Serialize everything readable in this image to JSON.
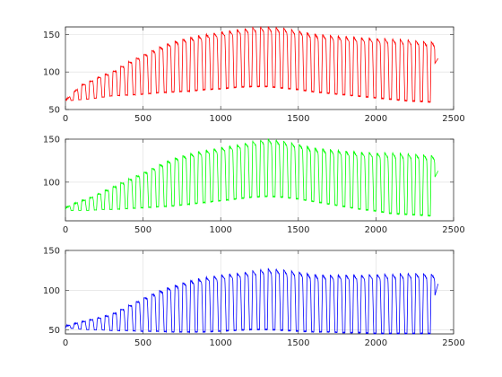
{
  "chart_data": [
    {
      "type": "line",
      "xlim": [
        0,
        2500
      ],
      "ylim": [
        50,
        160
      ],
      "xticks": [
        "0",
        "500",
        "1000",
        "1500",
        "2000",
        "2500"
      ],
      "yticks": [
        "50",
        "100",
        "150"
      ],
      "grid": true,
      "color": "#ff0000",
      "series": [
        {
          "x": [
            0,
            40,
            95,
            160,
            230,
            300,
            400,
            500,
            600,
            700,
            800,
            900,
            1000,
            1100,
            1200,
            1300,
            1400,
            1500,
            1600,
            1700,
            1800,
            1900,
            2000,
            2100,
            2200,
            2300,
            2380,
            2400
          ],
          "envelope_high": [
            62,
            70,
            82,
            88,
            95,
            100,
            113,
            123,
            133,
            141,
            146,
            150,
            153,
            156,
            159,
            160,
            159,
            155,
            151,
            149,
            147,
            146,
            145,
            144,
            143,
            141,
            140,
            118
          ],
          "envelope_low": [
            62,
            62,
            63,
            64,
            66,
            68,
            69,
            70,
            72,
            73,
            74,
            76,
            77,
            79,
            80,
            80,
            78,
            76,
            73,
            71,
            69,
            67,
            65,
            63,
            61,
            60,
            59,
            118
          ],
          "cycle_period": 50
        }
      ]
    },
    {
      "type": "line",
      "xlim": [
        0,
        2500
      ],
      "ylim": [
        55,
        150
      ],
      "xticks": [
        "0",
        "500",
        "1000",
        "1500",
        "2000",
        "2500"
      ],
      "yticks": [
        "50",
        "100",
        "150"
      ],
      "grid": true,
      "color": "#00ff00",
      "series": [
        {
          "x": [
            0,
            40,
            95,
            160,
            230,
            300,
            400,
            500,
            600,
            700,
            800,
            900,
            1000,
            1100,
            1200,
            1300,
            1400,
            1500,
            1600,
            1700,
            1800,
            1900,
            2000,
            2100,
            2200,
            2300,
            2380,
            2400
          ],
          "envelope_high": [
            70,
            74,
            78,
            82,
            88,
            94,
            103,
            111,
            120,
            128,
            133,
            137,
            140,
            143,
            147,
            150,
            148,
            144,
            140,
            138,
            136,
            135,
            134,
            134,
            133,
            132,
            131,
            113
          ],
          "envelope_low": [
            68,
            67,
            67,
            67,
            68,
            68,
            69,
            70,
            71,
            72,
            74,
            76,
            78,
            80,
            82,
            83,
            82,
            80,
            77,
            74,
            71,
            68,
            66,
            63,
            62,
            61,
            60,
            113
          ],
          "cycle_period": 50
        }
      ]
    },
    {
      "type": "line",
      "xlim": [
        0,
        2500
      ],
      "ylim": [
        45,
        150
      ],
      "xticks": [
        "0",
        "500",
        "1000",
        "1500",
        "2000",
        "2500"
      ],
      "yticks": [
        "50",
        "100",
        "150"
      ],
      "grid": true,
      "color": "#0000ff",
      "series": [
        {
          "x": [
            0,
            40,
            95,
            160,
            230,
            300,
            400,
            500,
            600,
            700,
            800,
            900,
            1000,
            1100,
            1200,
            1300,
            1400,
            1500,
            1600,
            1700,
            1800,
            1900,
            2000,
            2100,
            2200,
            2300,
            2380,
            2400
          ],
          "envelope_high": [
            55,
            57,
            60,
            63,
            66,
            70,
            80,
            90,
            99,
            106,
            112,
            116,
            119,
            121,
            124,
            127,
            126,
            123,
            120,
            119,
            119,
            119,
            120,
            120,
            121,
            121,
            120,
            108
          ],
          "envelope_low": [
            52,
            52,
            51,
            50,
            50,
            49,
            49,
            48,
            48,
            47,
            47,
            47,
            48,
            49,
            50,
            50,
            49,
            48,
            47,
            47,
            46,
            46,
            45,
            45,
            45,
            45,
            45,
            108
          ],
          "cycle_period": 50
        }
      ]
    }
  ]
}
